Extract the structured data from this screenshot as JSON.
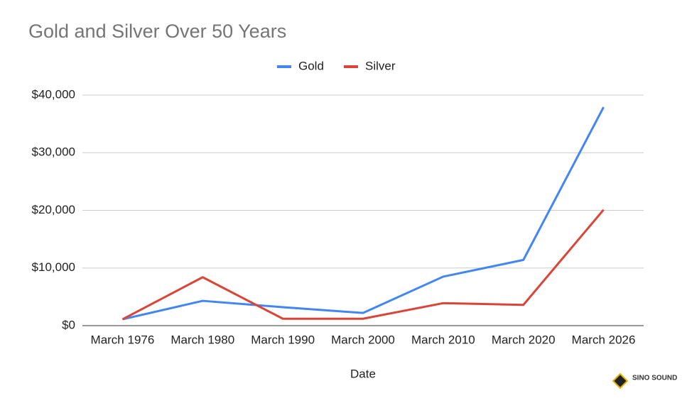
{
  "chart_data": {
    "type": "line",
    "title": "Gold and Silver Over 50 Years",
    "x_label": "Date",
    "categories": [
      "March 1976",
      "March 1980",
      "March 1990",
      "March 2000",
      "March 2010",
      "March 2020",
      "March 2026"
    ],
    "series": [
      {
        "name": "Gold",
        "color": "#4285f4",
        "values": [
          1100,
          4300,
          3200,
          2200,
          8500,
          11400,
          37900
        ]
      },
      {
        "name": "Silver",
        "color": "#db4437",
        "values": [
          1100,
          8400,
          1200,
          1200,
          3900,
          3600,
          20100
        ]
      }
    ],
    "ylim": [
      0,
      40000
    ],
    "yticks": [
      {
        "value": 0,
        "label": "$0"
      },
      {
        "value": 10000,
        "label": "$10,000"
      },
      {
        "value": 20000,
        "label": "$20,000"
      },
      {
        "value": 30000,
        "label": "$30,000"
      },
      {
        "value": 40000,
        "label": "$40,000"
      }
    ],
    "grid": true,
    "legend": "top",
    "watermark": "SINO SOUND"
  }
}
